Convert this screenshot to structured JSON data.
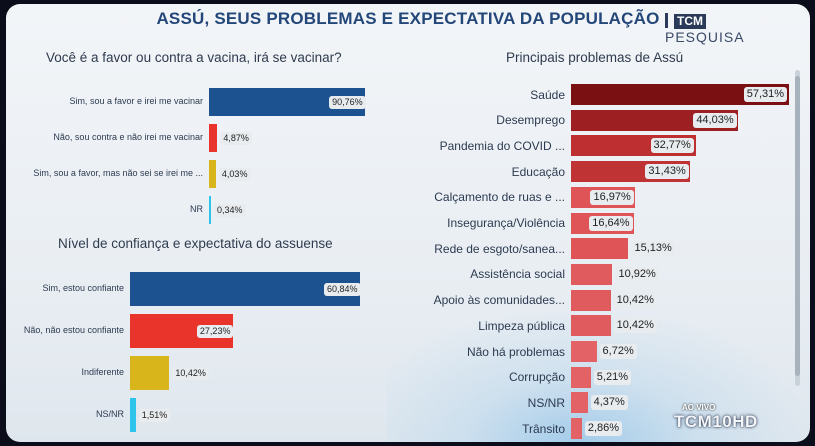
{
  "header": {
    "title": "ASSÚ, SEUS PROBLEMAS E EXPECTATIVA DA POPULAÇÃO",
    "logo_tcm": "TCM",
    "logo_pesquisa": "PESQUISA"
  },
  "overlay": {
    "live_label": "AO VIVO",
    "channel_logo": "TCM10HD"
  },
  "chart_data": [
    {
      "type": "bar",
      "orientation": "horizontal",
      "title": "Você é a favor ou contra a vacina, irá se vacinar?",
      "categories": [
        "Sim, sou a favor e irei me vacinar",
        "Não, sou contra e não irei me vacinar",
        "Sim, sou a favor, mas não sei se irei me ...",
        "NR"
      ],
      "values": [
        90.76,
        4.87,
        4.03,
        0.34
      ],
      "labels": [
        "90,76%",
        "4,87%",
        "4,03%",
        "0,34%"
      ],
      "colors": [
        "#1c5290",
        "#e8342a",
        "#d8b51b",
        "#2ec3ea"
      ],
      "xlim": [
        0,
        100
      ]
    },
    {
      "type": "bar",
      "orientation": "horizontal",
      "title": "Nível de confiança e expectativa do assuense",
      "categories": [
        "Sim, estou confiante",
        "Não, não estou confiante",
        "Indiferente",
        "NS/NR"
      ],
      "values": [
        60.84,
        27.23,
        10.42,
        1.51
      ],
      "labels": [
        "60,84%",
        "27,23%",
        "10,42%",
        "1,51%"
      ],
      "colors": [
        "#1c5290",
        "#e8342a",
        "#d8b51b",
        "#2ec3ea"
      ],
      "xlim": [
        0,
        100
      ]
    },
    {
      "type": "bar",
      "orientation": "horizontal",
      "title": "Principais problemas de Assú",
      "categories": [
        "Saúde",
        "Desemprego",
        "Pandemia do COVID ...",
        "Educação",
        "Calçamento de ruas e ...",
        "Insegurança/Violência",
        "Rede de esgoto/sanea...",
        "Assistência social",
        "Apoio às comunidades...",
        "Limpeza pública",
        "Não há problemas",
        "Corrupção",
        "NS/NR",
        "Trânsito"
      ],
      "values": [
        57.31,
        44.03,
        32.77,
        31.43,
        16.97,
        16.64,
        15.13,
        10.92,
        10.42,
        10.42,
        6.72,
        5.21,
        4.37,
        2.86
      ],
      "labels": [
        "57,31%",
        "44,03%",
        "32,77%",
        "31,43%",
        "16,97%",
        "16,64%",
        "15,13%",
        "10,92%",
        "10,42%",
        "10,42%",
        "6,72%",
        "5,21%",
        "4,37%",
        "2,86%"
      ],
      "colors": [
        "#7a1012",
        "#9d1f22",
        "#bd2f31",
        "#c03335",
        "#de5457",
        "#de5457",
        "#de5457",
        "#e05b5e",
        "#e05b5e",
        "#e05b5e",
        "#e36265",
        "#e36265",
        "#e36265",
        "#e36265"
      ],
      "xlim": [
        0,
        60
      ]
    }
  ]
}
